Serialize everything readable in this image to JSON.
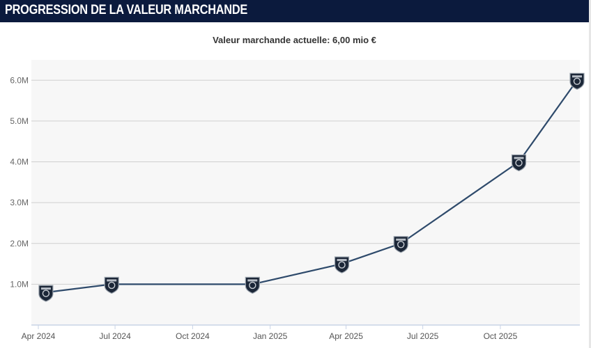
{
  "header": {
    "title": "PROGRESSION DE LA VALEUR MARCHANDE"
  },
  "subtitle": "Valeur marchande actuelle: 6,00 mio €",
  "colors": {
    "header_bg": "#0b1a3d",
    "plot_bg": "#f7f7f7",
    "line": "#2e4a6b",
    "marker": "#1c2738"
  },
  "chart_data": {
    "type": "line",
    "title": "",
    "xlabel": "",
    "ylabel": "",
    "x": [
      "2024-04-10",
      "2024-06-27",
      "2024-12-11",
      "2025-03-27",
      "2025-06-05",
      "2025-10-23",
      "2025-12-31"
    ],
    "values": [
      0.8,
      1.0,
      1.0,
      1.5,
      2.0,
      4.0,
      6.0
    ],
    "ylim": [
      0,
      6.5
    ],
    "y_ticks": [
      1.0,
      2.0,
      3.0,
      4.0,
      5.0,
      6.0
    ],
    "y_tick_labels": [
      "1.0M",
      "2.0M",
      "3.0M",
      "4.0M",
      "5.0M",
      "6.0M"
    ],
    "x_ticks": [
      "2024-04-01",
      "2024-07-01",
      "2024-10-01",
      "2025-01-01",
      "2025-04-01",
      "2025-07-01",
      "2025-10-01"
    ],
    "x_tick_labels": [
      "Apr 2024",
      "Jul 2024",
      "Oct 2024",
      "Jan 2025",
      "Apr 2025",
      "Jul 2025",
      "Oct 2025"
    ],
    "grid": true,
    "marker": "club-crest-icon"
  }
}
